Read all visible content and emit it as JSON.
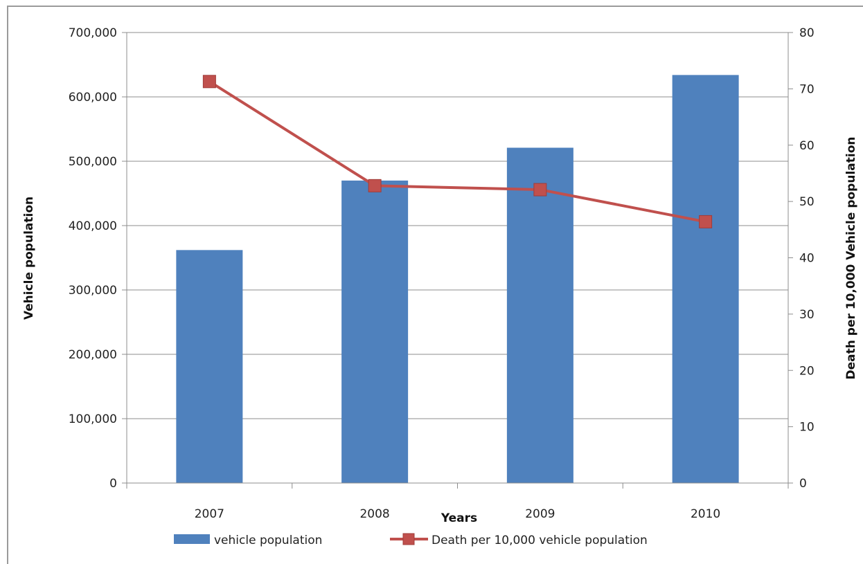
{
  "chart_data": {
    "type": "bar",
    "title": "",
    "categories": [
      "2007",
      "2008",
      "2009",
      "2010"
    ],
    "xlabel": "Years",
    "series": [
      {
        "name": "vehicle population",
        "kind": "bar",
        "axis": "left",
        "color": "#4F81BD",
        "values": [
          362000,
          470000,
          521000,
          634000
        ]
      },
      {
        "name": "Death per 10,000 vehicle population",
        "kind": "line",
        "axis": "right",
        "color": "#C0504D",
        "values": [
          71.3,
          52.8,
          52.1,
          46.4
        ]
      }
    ],
    "y_left": {
      "label": "Vehicle population",
      "ylim": [
        0,
        700000
      ],
      "ticks": [
        0,
        100000,
        200000,
        300000,
        400000,
        500000,
        600000,
        700000
      ],
      "tick_labels": [
        "0",
        "100,000",
        "200,000",
        "300,000",
        "400,000",
        "500,000",
        "600,000",
        "700,000"
      ]
    },
    "y_right": {
      "label": "Death per 10,000 Vehicle population",
      "ylim": [
        0,
        80
      ],
      "ticks": [
        0,
        10,
        20,
        30,
        40,
        50,
        60,
        70,
        80
      ],
      "tick_labels": [
        "0",
        "10",
        "20",
        "30",
        "40",
        "50",
        "60",
        "70",
        "80"
      ]
    },
    "grid": true,
    "legend": "bottom"
  }
}
